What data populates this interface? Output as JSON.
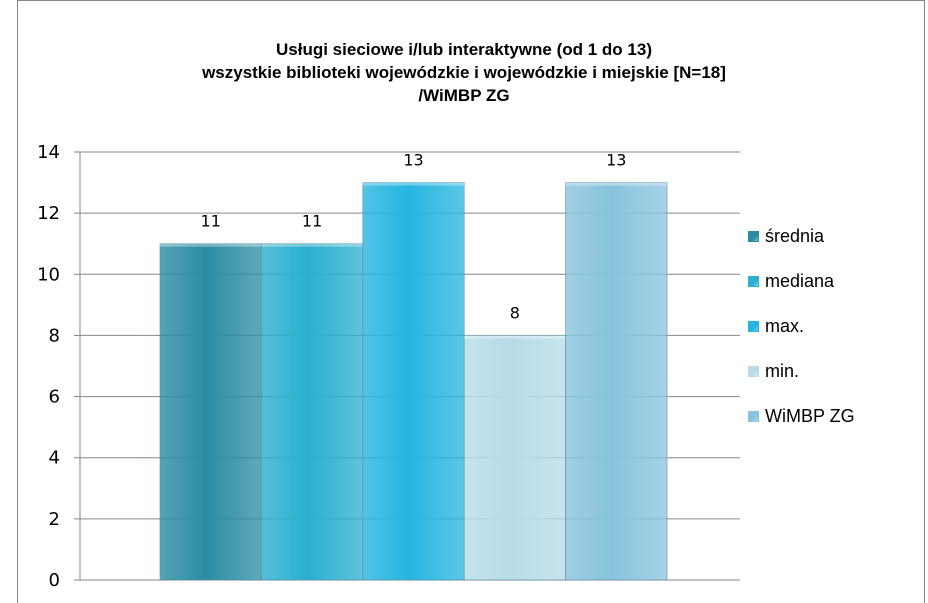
{
  "chart_data": {
    "type": "bar",
    "title_lines": [
      "Usługi sieciowe i/lub interaktywne  (od 1 do 13)",
      "wszystkie biblioteki wojewódzkie i wojewódzkie i miejskie  [N=18]",
      "/WiMBP  ZG"
    ],
    "series": [
      {
        "name": "średnia",
        "values": [
          11
        ],
        "color": "#2B8CA4"
      },
      {
        "name": "mediana",
        "values": [
          11
        ],
        "color": "#2AAFCF"
      },
      {
        "name": "max.",
        "values": [
          13
        ],
        "color": "#25B5DF"
      },
      {
        "name": "min.",
        "values": [
          8
        ],
        "color": "#B6DCE8"
      },
      {
        "name": "WiMBP ZG",
        "values": [
          13
        ],
        "color": "#88C3DD"
      }
    ],
    "data_labels": [
      "11",
      "11",
      "13",
      "8",
      "13"
    ],
    "yticks": [
      0,
      2,
      4,
      6,
      8,
      10,
      12,
      14
    ],
    "ylim": [
      0,
      14
    ],
    "grid": true,
    "legend_position": "right"
  }
}
